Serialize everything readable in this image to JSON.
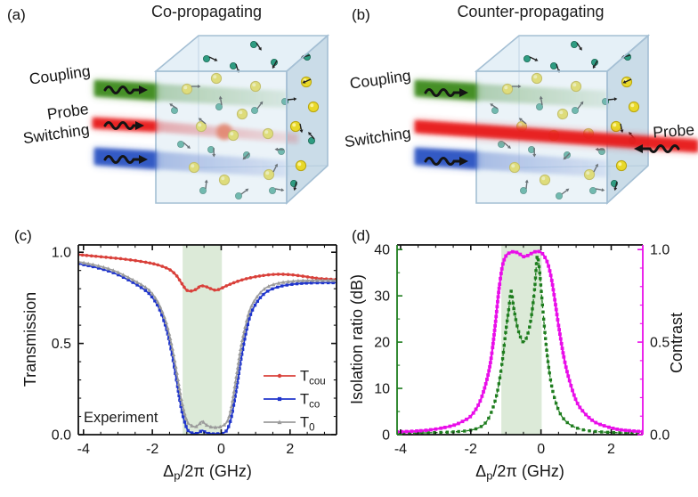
{
  "panels": {
    "a": {
      "letter": "(a)",
      "title": "Co-propagating",
      "labels": {
        "coupling": "Coupling",
        "probe": "Probe",
        "switching": "Switching"
      }
    },
    "b": {
      "letter": "(b)",
      "title": "Counter-propagating",
      "labels": {
        "coupling": "Coupling",
        "probe": "Probe",
        "switching": "Switching"
      }
    }
  },
  "schematic_colors": {
    "label_coupling": "#7fa24e",
    "label_probe": "#cf2020",
    "label_switching": "#5a7ab5",
    "beam_coupling": "#3c8a1e",
    "beam_probe": "#e81f1f",
    "beam_switching": "#2a52c2",
    "cube_face": "#cfe2ef",
    "cube_edge": "#a4bfd4",
    "atom_yellow": "#e8d829",
    "atom_teal": "#2e9c82",
    "arrow_black": "#141414"
  },
  "chart_data": [
    {
      "type": "line",
      "panel_letter": "(c)",
      "ylabel": "Transmission",
      "xlabel": {
        "pre": "Δ",
        "sub": "p",
        "post": "/2π (GHz)"
      },
      "xlim": [
        -4.15,
        3.35
      ],
      "ylim": [
        0,
        1.04
      ],
      "x_ticks": {
        "values": [
          -4,
          -2,
          0,
          2
        ],
        "labels": [
          "-4",
          "-2",
          "0",
          "2"
        ],
        "minor_step": 0.5
      },
      "y_ticks": {
        "values": [
          0,
          0.5,
          1.0
        ],
        "labels": [
          "0.0",
          "0.5",
          "1.0"
        ],
        "minor_step": 0.1
      },
      "axis_colors": {
        "left": "#111111",
        "right": "#111111",
        "top": "#111111",
        "bottom": "#111111",
        "tick_labels": "#111111"
      },
      "band": {
        "x0": -1.12,
        "x1": 0.02,
        "color": "#dcead8"
      },
      "annotation": {
        "text": "Experiment"
      },
      "legend": [
        {
          "main": "T",
          "sub": "cou",
          "color": "#d9403a",
          "marker": "circle"
        },
        {
          "main": "T",
          "sub": "co",
          "color": "#1f35cc",
          "marker": "square"
        },
        {
          "main": "T",
          "sub": "0",
          "color": "#9b9b9b",
          "marker": "triangle"
        }
      ],
      "series": [
        {
          "name": "T_cou",
          "color": "#d9403a",
          "marker": "circle",
          "marker_size": 1.8,
          "marker_spacing": 4.5,
          "line_width": 2.2,
          "axis": "left",
          "x": [
            -4.15,
            -3.6,
            -3.1,
            -2.6,
            -2.1,
            -1.8,
            -1.5,
            -1.3,
            -1.15,
            -1.0,
            -0.85,
            -0.7,
            -0.6,
            -0.45,
            -0.3,
            -0.15,
            0,
            0.2,
            0.5,
            0.8,
            1.2,
            1.6,
            2.0,
            2.4,
            2.8,
            3.35
          ],
          "y": [
            0.987,
            0.977,
            0.968,
            0.957,
            0.942,
            0.928,
            0.905,
            0.872,
            0.83,
            0.792,
            0.788,
            0.8,
            0.815,
            0.812,
            0.8,
            0.792,
            0.802,
            0.82,
            0.842,
            0.858,
            0.872,
            0.879,
            0.877,
            0.868,
            0.857,
            0.85
          ]
        },
        {
          "name": "T_co",
          "color": "#1f35cc",
          "marker": "square",
          "marker_size": 3.4,
          "marker_spacing": 5,
          "line_width": 1.8,
          "axis": "left",
          "x": [
            -4.15,
            -3.6,
            -3.1,
            -2.6,
            -2.2,
            -2.0,
            -1.8,
            -1.6,
            -1.45,
            -1.3,
            -1.15,
            -1.0,
            -0.88,
            -0.75,
            -0.65,
            -0.55,
            -0.45,
            -0.3,
            -0.1,
            0.05,
            0.18,
            0.3,
            0.45,
            0.6,
            0.8,
            1.0,
            1.3,
            1.7,
            2.2,
            2.7,
            3.35
          ],
          "y": [
            0.938,
            0.915,
            0.885,
            0.838,
            0.79,
            0.752,
            0.69,
            0.585,
            0.46,
            0.3,
            0.135,
            0.035,
            0.012,
            0.006,
            0.011,
            0.023,
            0.012,
            0.005,
            0.005,
            0.008,
            0.03,
            0.1,
            0.26,
            0.44,
            0.625,
            0.715,
            0.78,
            0.812,
            0.827,
            0.832,
            0.833
          ]
        },
        {
          "name": "T_0",
          "color": "#9b9b9b",
          "marker": "triangle",
          "marker_size": 3.8,
          "marker_spacing": 5,
          "line_width": 1.6,
          "axis": "left",
          "x": [
            -4.15,
            -3.6,
            -3.1,
            -2.6,
            -2.2,
            -2.0,
            -1.8,
            -1.6,
            -1.45,
            -1.3,
            -1.15,
            -1.0,
            -0.88,
            -0.75,
            -0.65,
            -0.55,
            -0.45,
            -0.3,
            -0.1,
            0.05,
            0.18,
            0.3,
            0.45,
            0.6,
            0.8,
            1.0,
            1.3,
            1.7,
            2.2,
            2.7,
            3.35
          ],
          "y": [
            0.948,
            0.927,
            0.898,
            0.852,
            0.808,
            0.772,
            0.712,
            0.615,
            0.5,
            0.35,
            0.185,
            0.078,
            0.052,
            0.044,
            0.056,
            0.073,
            0.056,
            0.043,
            0.041,
            0.05,
            0.075,
            0.155,
            0.33,
            0.505,
            0.665,
            0.745,
            0.805,
            0.832,
            0.843,
            0.846,
            0.846
          ]
        }
      ]
    },
    {
      "type": "line",
      "panel_letter": "(d)",
      "ylabel_left": {
        "text": "Isolation ratio (dB)",
        "color": "#1e7d1e"
      },
      "ylabel_right": {
        "text": "Contrast",
        "color": "#e90ee9"
      },
      "xlabel": {
        "pre": "Δ",
        "sub": "p",
        "post": "/2π (GHz)"
      },
      "xlim": [
        -4.1,
        2.9
      ],
      "ylim": [
        0,
        41
      ],
      "y2lim": [
        0,
        1.025
      ],
      "x_ticks": {
        "values": [
          -4,
          -2,
          0,
          2
        ],
        "labels": [
          "-4",
          "-2",
          "0",
          "2"
        ],
        "minor_step": 0.5
      },
      "y_ticks": {
        "values": [
          0,
          10,
          20,
          30,
          40
        ],
        "labels": [
          "0",
          "10",
          "20",
          "30",
          "40"
        ],
        "minor_step": 5
      },
      "y2_ticks": {
        "values": [
          0,
          0.5,
          1.0
        ],
        "labels": [
          "0.0",
          "0.5",
          "1.0"
        ],
        "minor_step": 0.1
      },
      "axis_colors": {
        "left": "#1e7d1e",
        "right": "#e90ee9",
        "top": "#111111",
        "bottom": "#111111",
        "tick_labels": "#111111"
      },
      "band": {
        "x0": -1.13,
        "x1": 0.02,
        "color": "#dcead8"
      },
      "series": [
        {
          "name": "Isolation ratio",
          "color": "#1e7d1e",
          "marker": "square",
          "marker_size": 3.4,
          "marker_spacing": 6,
          "line_width": 1.3,
          "dash": "3.5 2.5",
          "axis": "left",
          "x": [
            -4.1,
            -3.5,
            -3.0,
            -2.5,
            -2.1,
            -1.8,
            -1.6,
            -1.45,
            -1.3,
            -1.2,
            -1.1,
            -1.0,
            -0.92,
            -0.85,
            -0.78,
            -0.68,
            -0.58,
            -0.5,
            -0.42,
            -0.32,
            -0.24,
            -0.17,
            -0.11,
            -0.05,
            0.02,
            0.1,
            0.18,
            0.28,
            0.4,
            0.55,
            0.75,
            1.0,
            1.3,
            1.7,
            2.1,
            2.5,
            2.9
          ],
          "y": [
            0.3,
            0.35,
            0.45,
            0.6,
            0.85,
            1.4,
            2.4,
            4.2,
            7.5,
            11,
            16,
            22.5,
            27,
            31,
            27.5,
            23.5,
            21,
            20,
            20.8,
            23.5,
            27.5,
            32.5,
            38.5,
            36,
            30,
            23,
            17,
            11.5,
            7.5,
            4.5,
            2.6,
            1.5,
            0.9,
            0.6,
            0.45,
            0.35,
            0.3
          ]
        },
        {
          "name": "Contrast",
          "color": "#e90ee9",
          "marker": "square",
          "marker_size": 3.8,
          "marker_spacing": 4.5,
          "line_width": 2.2,
          "axis": "right",
          "x": [
            -4.1,
            -3.5,
            -3.0,
            -2.5,
            -2.2,
            -2.0,
            -1.8,
            -1.65,
            -1.5,
            -1.4,
            -1.3,
            -1.2,
            -1.1,
            -1.0,
            -0.9,
            -0.8,
            -0.7,
            -0.6,
            -0.5,
            -0.4,
            -0.3,
            -0.2,
            -0.1,
            0,
            0.1,
            0.2,
            0.3,
            0.4,
            0.5,
            0.65,
            0.8,
            1.0,
            1.2,
            1.5,
            1.8,
            2.2,
            2.6,
            2.9
          ],
          "y": [
            0.015,
            0.02,
            0.03,
            0.05,
            0.075,
            0.1,
            0.155,
            0.225,
            0.33,
            0.44,
            0.6,
            0.78,
            0.91,
            0.965,
            0.982,
            0.988,
            0.985,
            0.975,
            0.962,
            0.966,
            0.976,
            0.986,
            0.99,
            0.985,
            0.962,
            0.92,
            0.84,
            0.72,
            0.59,
            0.42,
            0.3,
            0.185,
            0.125,
            0.072,
            0.048,
            0.028,
            0.02,
            0.016
          ]
        }
      ]
    }
  ]
}
